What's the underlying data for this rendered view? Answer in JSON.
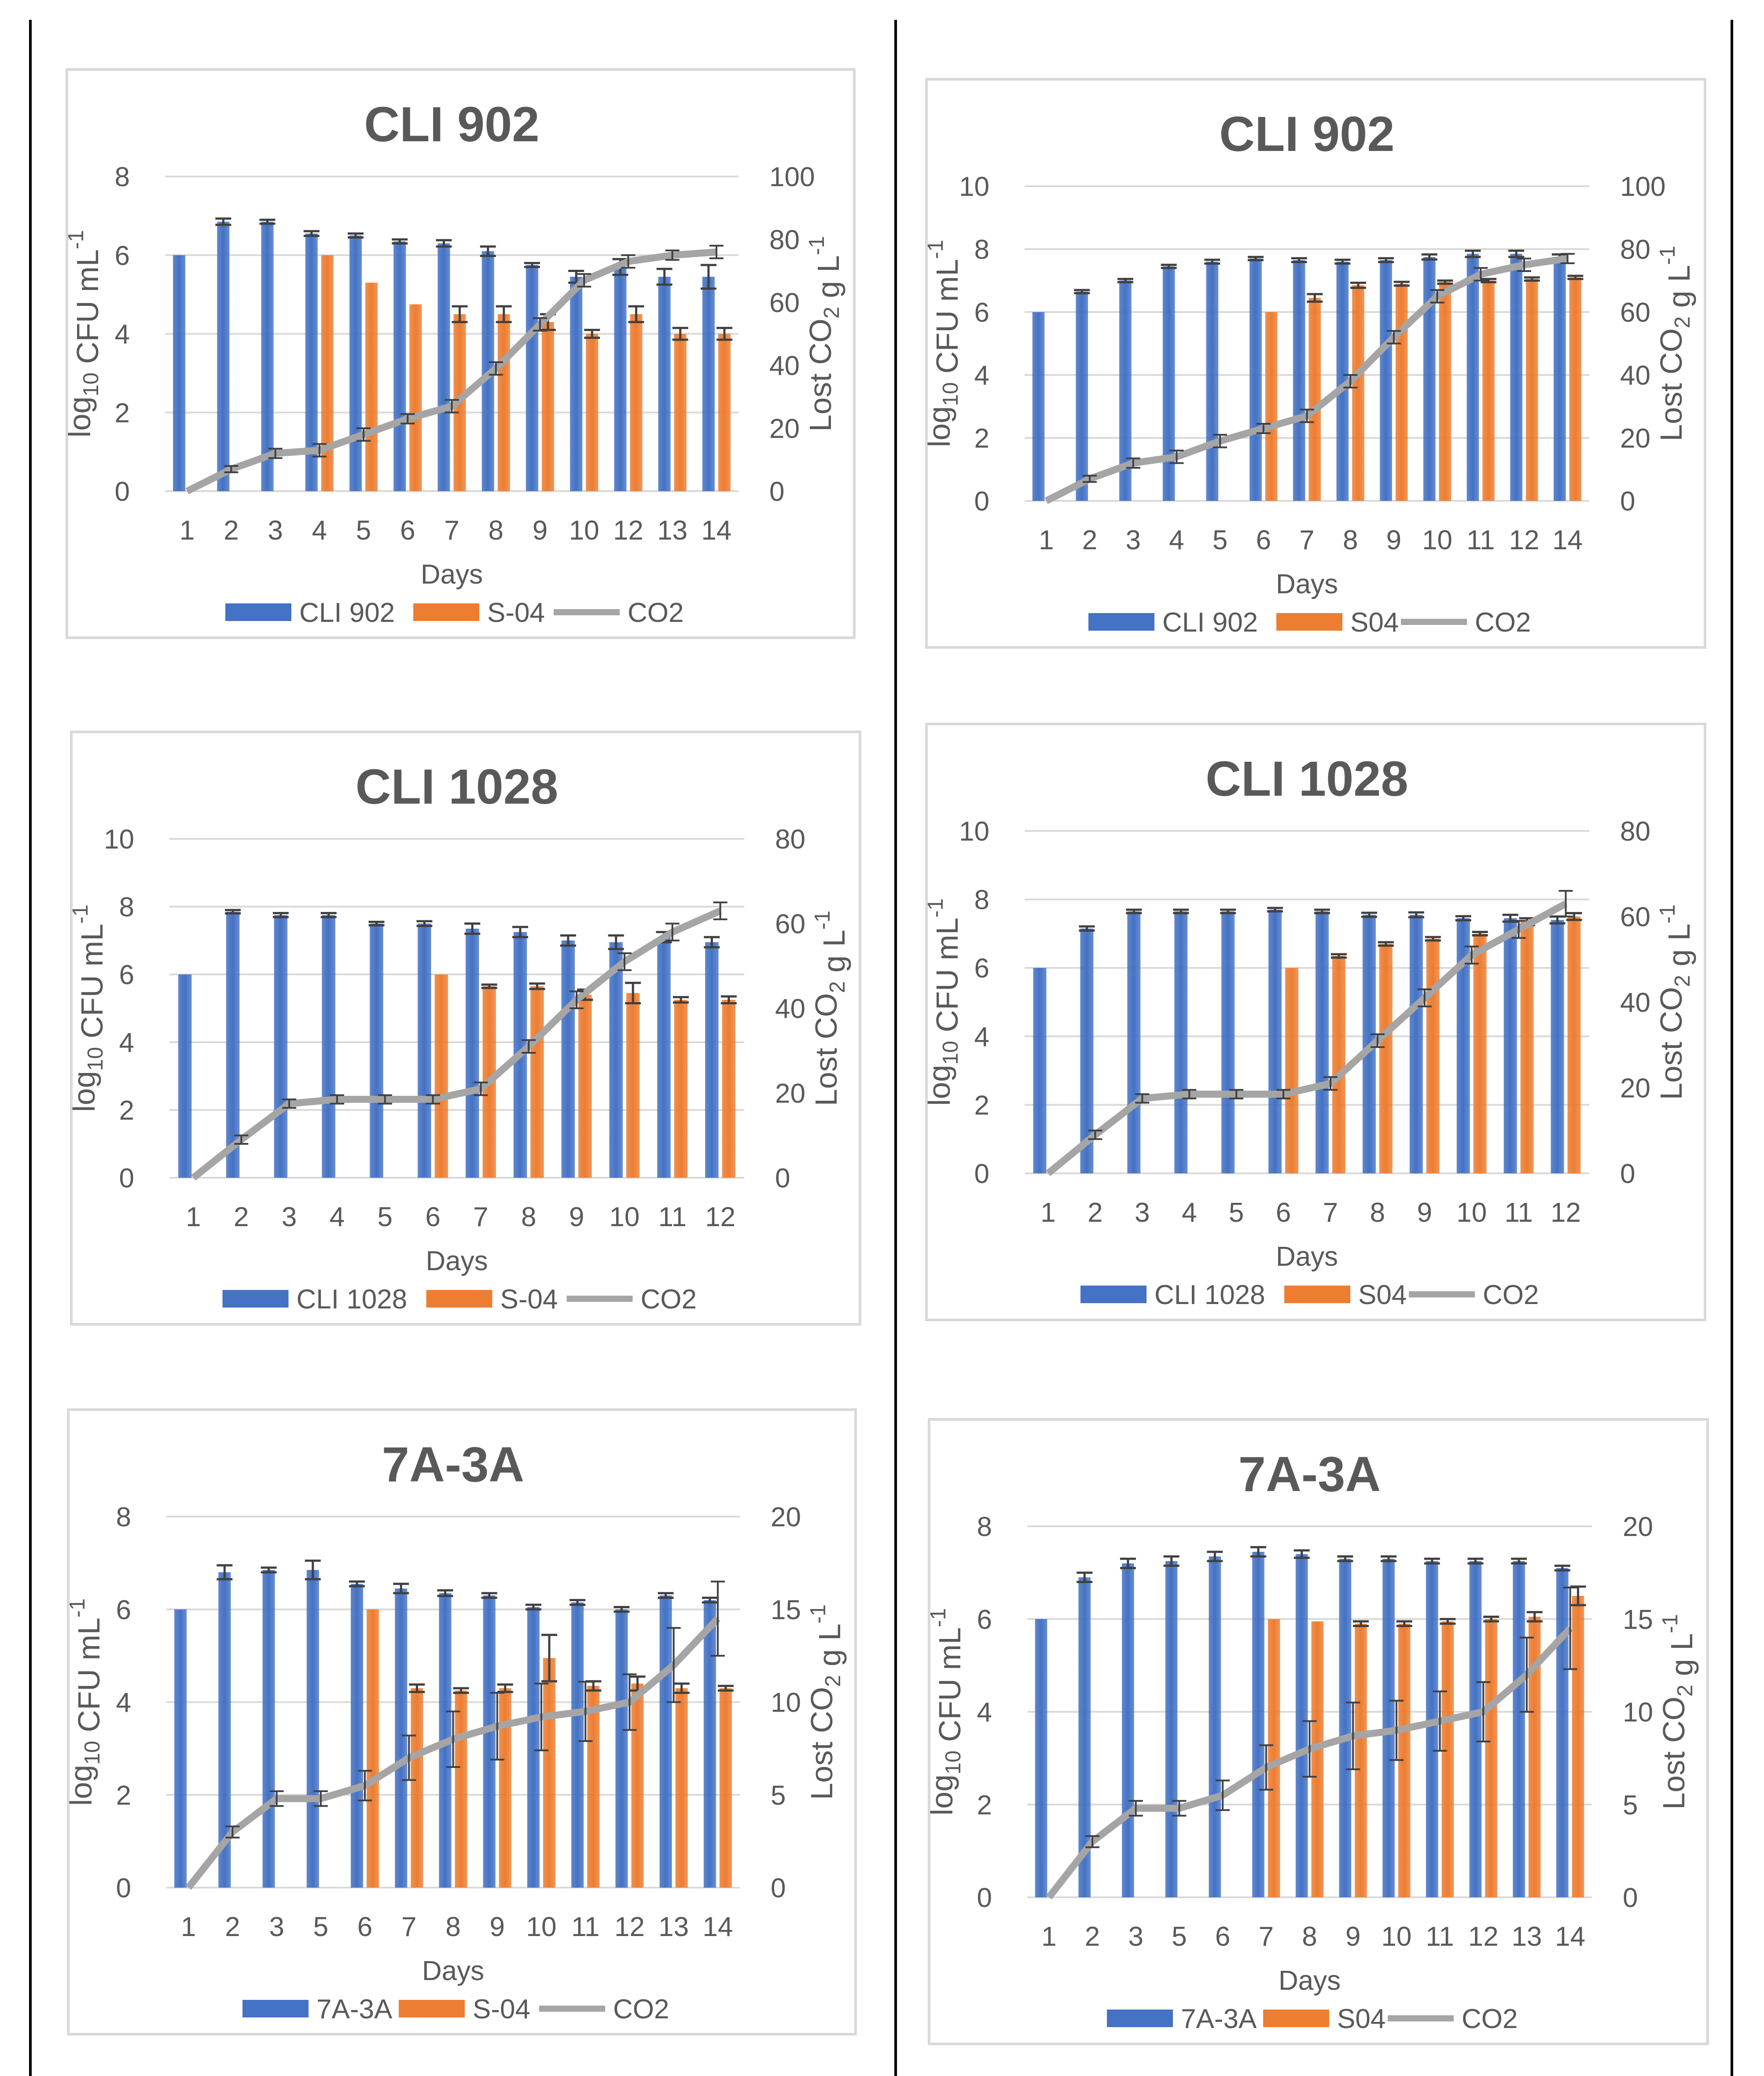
{
  "colors": {
    "strain": "#4472c4",
    "reference": "#ed7d31",
    "co2": "#a5a5a5",
    "text": "#595959",
    "grid": "#d9d9d9",
    "error": "#404040"
  },
  "chart_data": [
    {
      "type": "bar",
      "title": "CLI 902",
      "xlabel": "Days",
      "ylabel": "log10 CFU mL-1",
      "y2label": "Lost CO2 g L-1",
      "categories": [
        "1",
        "2",
        "3",
        "4",
        "5",
        "6",
        "7",
        "8",
        "9",
        "10",
        "12",
        "13",
        "14"
      ],
      "ylim": [
        0,
        8
      ],
      "yticks": [
        0,
        2,
        4,
        6,
        8
      ],
      "y2lim": [
        0,
        100
      ],
      "y2ticks": [
        0,
        20,
        40,
        60,
        80,
        100
      ],
      "legend_position": "bottom",
      "series": [
        {
          "name": "CLI 902",
          "type": "bar",
          "axis": "left",
          "values": [
            6.0,
            6.85,
            6.85,
            6.55,
            6.5,
            6.35,
            6.3,
            6.1,
            5.75,
            5.45,
            5.7,
            5.45,
            5.45
          ],
          "errors": [
            0,
            0.08,
            0.05,
            0.06,
            0.05,
            0.05,
            0.08,
            0.12,
            0.05,
            0.15,
            0.2,
            0.2,
            0.3
          ]
        },
        {
          "name": "S-04",
          "type": "bar",
          "axis": "left",
          "values": [
            null,
            null,
            null,
            6.0,
            5.3,
            4.75,
            4.5,
            4.5,
            4.3,
            4.0,
            4.5,
            4.0,
            4.0
          ],
          "errors": [
            0,
            0,
            0,
            0,
            0,
            0,
            0.2,
            0.2,
            0.2,
            0.1,
            0.2,
            0.15,
            0.15
          ]
        },
        {
          "name": "CO2",
          "type": "line",
          "axis": "right",
          "values": [
            0,
            7,
            12,
            13,
            18,
            23,
            27,
            39,
            53,
            67,
            73,
            75,
            76
          ],
          "errors": [
            0,
            1,
            1.5,
            2,
            2,
            1.5,
            2,
            2,
            2,
            2,
            2,
            1.5,
            2
          ]
        }
      ]
    },
    {
      "type": "bar",
      "title": "CLI 902",
      "xlabel": "Days",
      "ylabel": "log10 CFU mL-1",
      "y2label": "Lost CO2 g L-1",
      "categories": [
        "1",
        "2",
        "3",
        "4",
        "5",
        "6",
        "7",
        "8",
        "9",
        "10",
        "11",
        "12",
        "14"
      ],
      "ylim": [
        0,
        10
      ],
      "yticks": [
        0,
        2,
        4,
        6,
        8,
        10
      ],
      "y2lim": [
        0,
        100
      ],
      "y2ticks": [
        0,
        20,
        40,
        60,
        80,
        100
      ],
      "legend_position": "bottom",
      "series": [
        {
          "name": "CLI 902",
          "type": "bar",
          "axis": "left",
          "values": [
            6.0,
            6.65,
            7.0,
            7.45,
            7.6,
            7.7,
            7.65,
            7.6,
            7.65,
            7.75,
            7.85,
            7.85,
            7.75
          ],
          "errors": [
            0,
            0.05,
            0.05,
            0.05,
            0.06,
            0.05,
            0.06,
            0.06,
            0.06,
            0.08,
            0.1,
            0.1,
            0.08
          ]
        },
        {
          "name": "S04",
          "type": "bar",
          "axis": "left",
          "values": [
            null,
            null,
            null,
            null,
            null,
            6.0,
            6.45,
            6.85,
            6.9,
            6.95,
            7.0,
            7.05,
            7.1
          ],
          "errors": [
            0,
            0,
            0,
            0,
            0,
            0,
            0.12,
            0.08,
            0.06,
            0.05,
            0.05,
            0.05,
            0.05
          ]
        },
        {
          "name": "CO2",
          "type": "line",
          "axis": "right",
          "values": [
            0,
            7,
            12,
            14,
            19,
            23,
            27,
            38,
            52,
            65,
            72,
            75,
            77
          ],
          "errors": [
            0,
            1,
            1.5,
            2,
            2,
            1.5,
            2,
            2,
            2,
            2,
            2,
            2,
            1.5
          ]
        }
      ]
    },
    {
      "type": "bar",
      "title": "CLI 1028",
      "xlabel": "Days",
      "ylabel": "log10 CFU mL-1",
      "y2label": "Lost CO2 g L-1",
      "categories": [
        "1",
        "2",
        "3",
        "4",
        "5",
        "6",
        "7",
        "8",
        "9",
        "10",
        "11",
        "12"
      ],
      "ylim": [
        0,
        10
      ],
      "yticks": [
        0,
        2,
        4,
        6,
        8,
        10
      ],
      "y2lim": [
        0,
        80
      ],
      "y2ticks": [
        0,
        20,
        40,
        60,
        80
      ],
      "legend_position": "bottom",
      "series": [
        {
          "name": "CLI 1028",
          "type": "bar",
          "axis": "left",
          "values": [
            6.0,
            7.85,
            7.75,
            7.75,
            7.5,
            7.5,
            7.35,
            7.25,
            7.0,
            6.95,
            7.1,
            6.95
          ],
          "errors": [
            0,
            0.05,
            0.06,
            0.06,
            0.05,
            0.07,
            0.15,
            0.15,
            0.15,
            0.2,
            0.15,
            0.15
          ]
        },
        {
          "name": "S-04",
          "type": "bar",
          "axis": "left",
          "values": [
            null,
            null,
            null,
            null,
            null,
            6.0,
            5.65,
            5.65,
            5.4,
            5.45,
            5.25,
            5.25
          ],
          "errors": [
            0,
            0,
            0,
            0,
            0,
            0,
            0.05,
            0.08,
            0.15,
            0.3,
            0.08,
            0.1
          ]
        },
        {
          "name": "CO2",
          "type": "line",
          "axis": "right",
          "values": [
            0,
            9,
            17.5,
            18.5,
            18.5,
            18.5,
            21,
            31,
            42,
            51,
            58,
            63
          ],
          "errors": [
            0,
            1,
            1,
            1,
            1,
            1,
            1.5,
            1.5,
            2,
            2,
            2,
            2
          ]
        }
      ]
    },
    {
      "type": "bar",
      "title": "CLI 1028",
      "xlabel": "Days",
      "ylabel": "log10 CFU mL-1",
      "y2label": "Lost CO2 g L-1",
      "categories": [
        "1",
        "2",
        "3",
        "4",
        "5",
        "6",
        "7",
        "8",
        "9",
        "10",
        "11",
        "12"
      ],
      "ylim": [
        0,
        10
      ],
      "yticks": [
        0,
        2,
        4,
        6,
        8,
        10
      ],
      "y2lim": [
        0,
        80
      ],
      "y2ticks": [
        0,
        20,
        40,
        60,
        80
      ],
      "legend_position": "bottom",
      "series": [
        {
          "name": "CLI 1028",
          "type": "bar",
          "axis": "left",
          "values": [
            6.0,
            7.15,
            7.65,
            7.65,
            7.65,
            7.7,
            7.65,
            7.55,
            7.55,
            7.45,
            7.45,
            7.4
          ],
          "errors": [
            0,
            0.06,
            0.05,
            0.05,
            0.05,
            0.05,
            0.05,
            0.06,
            0.07,
            0.06,
            0.1,
            0.1
          ]
        },
        {
          "name": "S04",
          "type": "bar",
          "axis": "left",
          "values": [
            null,
            null,
            null,
            null,
            null,
            6.0,
            6.35,
            6.7,
            6.85,
            7.0,
            7.35,
            7.5
          ],
          "errors": [
            0,
            0,
            0,
            0,
            0,
            0,
            0.05,
            0.05,
            0.05,
            0.05,
            0.1,
            0.1
          ]
        },
        {
          "name": "CO2",
          "type": "line",
          "axis": "right",
          "values": [
            0,
            9,
            17.5,
            18.5,
            18.5,
            18.5,
            21,
            31,
            41,
            51,
            57,
            63
          ],
          "errors": [
            0,
            1,
            1,
            1,
            1,
            1,
            1.5,
            1.5,
            2,
            2,
            2,
            3
          ]
        }
      ]
    },
    {
      "type": "bar",
      "title": "7A-3A",
      "xlabel": "Days",
      "ylabel": "log10 CFU mL-1",
      "y2label": "Lost CO2 g L-1",
      "categories": [
        "1",
        "2",
        "3",
        "5",
        "6",
        "7",
        "8",
        "9",
        "10",
        "11",
        "12",
        "13",
        "14"
      ],
      "ylim": [
        0,
        8
      ],
      "yticks": [
        0,
        2,
        4,
        6,
        8
      ],
      "y2lim": [
        0,
        20
      ],
      "y2ticks": [
        0,
        5,
        10,
        15,
        20
      ],
      "legend_position": "bottom",
      "series": [
        {
          "name": "7A-3A",
          "type": "bar",
          "axis": "left",
          "values": [
            6.0,
            6.8,
            6.85,
            6.85,
            6.55,
            6.45,
            6.35,
            6.3,
            6.05,
            6.15,
            6.0,
            6.3,
            6.2
          ],
          "errors": [
            0,
            0.15,
            0.05,
            0.2,
            0.05,
            0.1,
            0.06,
            0.05,
            0.05,
            0.05,
            0.05,
            0.05,
            0.05
          ]
        },
        {
          "name": "S-04",
          "type": "bar",
          "axis": "left",
          "values": [
            null,
            null,
            null,
            null,
            6.0,
            4.3,
            4.25,
            4.3,
            4.95,
            4.35,
            4.4,
            4.3,
            4.3
          ],
          "errors": [
            0,
            0,
            0,
            0,
            0,
            0.08,
            0.05,
            0.08,
            0.5,
            0.1,
            0.15,
            0.1,
            0.05
          ]
        },
        {
          "name": "CO2",
          "type": "line",
          "axis": "right",
          "values": [
            0,
            3,
            4.8,
            4.8,
            5.5,
            7,
            8,
            8.7,
            9.2,
            9.5,
            10,
            12,
            14.5
          ],
          "errors": [
            0,
            0.3,
            0.4,
            0.4,
            0.8,
            1.2,
            1.5,
            1.8,
            1.8,
            1.6,
            1.5,
            2,
            2
          ]
        }
      ]
    },
    {
      "type": "bar",
      "title": "7A-3A",
      "xlabel": "Days",
      "ylabel": "log10 CFU mL-1",
      "y2label": "Lost CO2 g L-1",
      "categories": [
        "1",
        "2",
        "3",
        "5",
        "6",
        "7",
        "8",
        "9",
        "10",
        "11",
        "12",
        "13",
        "14"
      ],
      "ylim": [
        0,
        8
      ],
      "yticks": [
        0,
        2,
        4,
        6,
        8
      ],
      "y2lim": [
        0,
        20
      ],
      "y2ticks": [
        0,
        5,
        10,
        15,
        20
      ],
      "legend_position": "bottom",
      "series": [
        {
          "name": "7A-3A",
          "type": "bar",
          "axis": "left",
          "values": [
            6.0,
            6.9,
            7.2,
            7.25,
            7.35,
            7.45,
            7.4,
            7.3,
            7.3,
            7.25,
            7.25,
            7.25,
            7.1
          ],
          "errors": [
            0,
            0.1,
            0.1,
            0.1,
            0.1,
            0.1,
            0.08,
            0.05,
            0.05,
            0.05,
            0.05,
            0.05,
            0.05
          ]
        },
        {
          "name": "S04",
          "type": "bar",
          "axis": "left",
          "values": [
            null,
            null,
            null,
            null,
            null,
            6.0,
            5.95,
            5.9,
            5.9,
            5.95,
            6.0,
            6.05,
            6.5
          ],
          "errors": [
            0,
            0,
            0,
            0,
            0,
            0,
            0,
            0.05,
            0.05,
            0.05,
            0.05,
            0.1,
            0.2
          ]
        },
        {
          "name": "CO2",
          "type": "line",
          "axis": "right",
          "values": [
            0,
            3,
            4.8,
            4.8,
            5.5,
            7,
            8,
            8.7,
            9,
            9.5,
            10,
            12,
            14.5
          ],
          "errors": [
            0,
            0.3,
            0.4,
            0.4,
            0.8,
            1.2,
            1.5,
            1.8,
            1.6,
            1.6,
            1.6,
            2,
            2.2
          ]
        }
      ]
    }
  ]
}
